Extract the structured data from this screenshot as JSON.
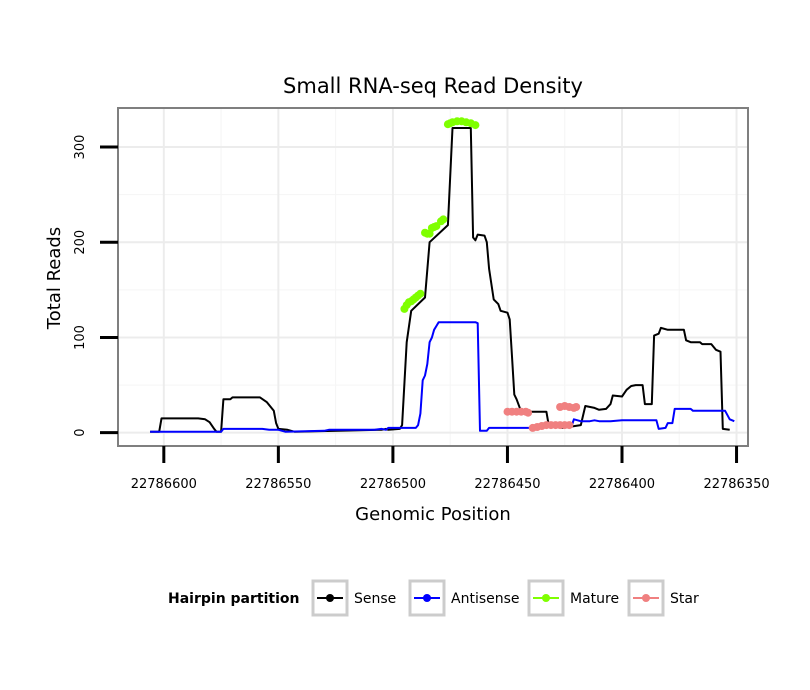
{
  "chart_data": {
    "type": "line",
    "title": "Small RNA-seq Read Density",
    "xlabel": "Genomic Position",
    "ylabel": "Total Reads",
    "xlim": [
      22786620,
      22786345
    ],
    "x_reversed": true,
    "ylim": [
      -14,
      341
    ],
    "xticks": [
      22786600,
      22786550,
      22786500,
      22786450,
      22786400,
      22786350
    ],
    "yticks": [
      0,
      100,
      200,
      300
    ],
    "grid": true,
    "legend": {
      "title": "Hairpin partition",
      "position": "bottom",
      "entries": [
        {
          "name": "Sense",
          "color": "#000000"
        },
        {
          "name": "Antisense",
          "color": "#0000ff"
        },
        {
          "name": "Mature",
          "color": "#7fff00"
        },
        {
          "name": "Star",
          "color": "#f08080"
        }
      ]
    },
    "series": [
      {
        "name": "Sense",
        "style": "line",
        "color": "#000000",
        "points": [
          [
            22786606,
            1
          ],
          [
            22786602,
            1
          ],
          [
            22786601,
            15
          ],
          [
            22786585,
            15
          ],
          [
            22786582,
            14
          ],
          [
            22786580,
            11
          ],
          [
            22786578,
            4
          ],
          [
            22786577,
            1
          ],
          [
            22786575,
            1
          ],
          [
            22786574,
            35
          ],
          [
            22786571,
            35
          ],
          [
            22786570,
            37
          ],
          [
            22786558,
            37
          ],
          [
            22786555,
            32
          ],
          [
            22786552,
            23
          ],
          [
            22786551,
            10
          ],
          [
            22786550,
            4
          ],
          [
            22786546,
            3
          ],
          [
            22786543,
            1
          ],
          [
            22786505,
            3
          ],
          [
            22786503,
            4
          ],
          [
            22786502,
            3
          ],
          [
            22786497,
            4
          ],
          [
            22786496,
            8
          ],
          [
            22786494,
            95
          ],
          [
            22786492,
            128
          ],
          [
            22786486,
            142
          ],
          [
            22786484,
            200
          ],
          [
            22786476,
            218
          ],
          [
            22786474,
            320
          ],
          [
            22786466,
            320
          ],
          [
            22786465,
            205
          ],
          [
            22786464,
            202
          ],
          [
            22786463,
            208
          ],
          [
            22786460,
            207
          ],
          [
            22786459,
            200
          ],
          [
            22786458,
            172
          ],
          [
            22786456,
            140
          ],
          [
            22786454,
            135
          ],
          [
            22786453,
            128
          ],
          [
            22786450,
            126
          ],
          [
            22786449,
            119
          ],
          [
            22786448,
            80
          ],
          [
            22786447,
            40
          ],
          [
            22786446,
            35
          ],
          [
            22786444,
            22
          ],
          [
            22786433,
            22
          ],
          [
            22786432,
            8
          ],
          [
            22786426,
            5
          ],
          [
            22786418,
            8
          ],
          [
            22786416,
            28
          ],
          [
            22786412,
            26
          ],
          [
            22786410,
            24
          ],
          [
            22786407,
            25
          ],
          [
            22786405,
            30
          ],
          [
            22786404,
            39
          ],
          [
            22786400,
            38
          ],
          [
            22786398,
            45
          ],
          [
            22786396,
            49
          ],
          [
            22786394,
            50
          ],
          [
            22786391,
            50
          ],
          [
            22786390,
            30
          ],
          [
            22786387,
            30
          ],
          [
            22786386,
            102
          ],
          [
            22786384,
            104
          ],
          [
            22786383,
            110
          ],
          [
            22786380,
            108
          ],
          [
            22786373,
            108
          ],
          [
            22786372,
            97
          ],
          [
            22786370,
            95
          ],
          [
            22786366,
            95
          ],
          [
            22786365,
            93
          ],
          [
            22786361,
            93
          ],
          [
            22786359,
            87
          ],
          [
            22786357,
            85
          ],
          [
            22786356,
            4
          ],
          [
            22786353,
            3
          ]
        ]
      },
      {
        "name": "Antisense",
        "style": "line",
        "color": "#0000ff",
        "points": [
          [
            22786606,
            1
          ],
          [
            22786575,
            1
          ],
          [
            22786574,
            4
          ],
          [
            22786557,
            4
          ],
          [
            22786554,
            3
          ],
          [
            22786550,
            3
          ],
          [
            22786547,
            1
          ],
          [
            22786530,
            2
          ],
          [
            22786528,
            3
          ],
          [
            22786508,
            3
          ],
          [
            22786505,
            4
          ],
          [
            22786503,
            3
          ],
          [
            22786502,
            5
          ],
          [
            22786490,
            5
          ],
          [
            22786489,
            8
          ],
          [
            22786488,
            20
          ],
          [
            22786487,
            55
          ],
          [
            22786486,
            60
          ],
          [
            22786485,
            72
          ],
          [
            22786484,
            95
          ],
          [
            22786483,
            100
          ],
          [
            22786482,
            108
          ],
          [
            22786481,
            112
          ],
          [
            22786480,
            116
          ],
          [
            22786464,
            116
          ],
          [
            22786463,
            115
          ],
          [
            22786462,
            2
          ],
          [
            22786459,
            2
          ],
          [
            22786458,
            5
          ],
          [
            22786440,
            5
          ],
          [
            22786435,
            7
          ],
          [
            22786422,
            7
          ],
          [
            22786421,
            14
          ],
          [
            22786418,
            12
          ],
          [
            22786414,
            12
          ],
          [
            22786412,
            13
          ],
          [
            22786410,
            12
          ],
          [
            22786405,
            12
          ],
          [
            22786400,
            13
          ],
          [
            22786395,
            13
          ],
          [
            22786385,
            13
          ],
          [
            22786384,
            4
          ],
          [
            22786381,
            5
          ],
          [
            22786380,
            10
          ],
          [
            22786378,
            10
          ],
          [
            22786377,
            25
          ],
          [
            22786370,
            25
          ],
          [
            22786369,
            23
          ],
          [
            22786355,
            23
          ],
          [
            22786353,
            14
          ],
          [
            22786351,
            12
          ]
        ]
      },
      {
        "name": "Mature",
        "style": "points",
        "color": "#7fff00",
        "points": [
          [
            22786495,
            130
          ],
          [
            22786494,
            134
          ],
          [
            22786493,
            137
          ],
          [
            22786492,
            138
          ],
          [
            22786491,
            140
          ],
          [
            22786490,
            142
          ],
          [
            22786489,
            144
          ],
          [
            22786488,
            146
          ],
          [
            22786486,
            210
          ],
          [
            22786485,
            209
          ],
          [
            22786484,
            209
          ],
          [
            22786483,
            215
          ],
          [
            22786482,
            216
          ],
          [
            22786481,
            217
          ],
          [
            22786479,
            222
          ],
          [
            22786478,
            224
          ],
          [
            22786476,
            324
          ],
          [
            22786475,
            325
          ],
          [
            22786474,
            326
          ],
          [
            22786472,
            327
          ],
          [
            22786470,
            327
          ],
          [
            22786468,
            326
          ],
          [
            22786466,
            325
          ],
          [
            22786464,
            323
          ]
        ]
      },
      {
        "name": "Star",
        "style": "points",
        "color": "#f08080",
        "points": [
          [
            22786450,
            22
          ],
          [
            22786448,
            22
          ],
          [
            22786446,
            22
          ],
          [
            22786444,
            22
          ],
          [
            22786442,
            22
          ],
          [
            22786441,
            21
          ],
          [
            22786439,
            5
          ],
          [
            22786437,
            6
          ],
          [
            22786435,
            7
          ],
          [
            22786433,
            8
          ],
          [
            22786431,
            8
          ],
          [
            22786429,
            8
          ],
          [
            22786427,
            8
          ],
          [
            22786425,
            8
          ],
          [
            22786423,
            8
          ],
          [
            22786427,
            27
          ],
          [
            22786425,
            28
          ],
          [
            22786423,
            27
          ],
          [
            22786421,
            26
          ],
          [
            22786420,
            27
          ]
        ]
      }
    ]
  }
}
